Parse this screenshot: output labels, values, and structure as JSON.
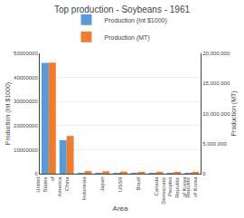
{
  "chart_data": {
    "type": "bar",
    "title": "Top production - Soybeans - 1961",
    "xlabel": "Area",
    "ylabel": "Production (Int $1000)",
    "y2label": "Production (MT)",
    "categories": [
      "United\nStates\nof\nAmerica",
      "China",
      "Indonesia",
      "Japan",
      "USSR",
      "Brazil",
      "Canada",
      "Democratic\nPeoples\nRepublic\nof Korea",
      "Republic\nof Korea"
    ],
    "series": [
      {
        "name": "Production (Int $1000)",
        "color": "#5b9bd5",
        "values": [
          46071275,
          13926583,
          110348,
          334204,
          60137,
          58494,
          47396,
          39827,
          39902
        ]
      },
      {
        "name": "Production (MT)",
        "color": "#ed7d31",
        "axis": "y2",
        "values": [
          18468000,
          6283900,
          426300,
          392900,
          344000,
          271488,
          190443,
          170000,
          164836
        ]
      }
    ],
    "ylim": [
      0,
      50000000
    ],
    "yticks": [
      0,
      10000000,
      20000000,
      30000000,
      40000000,
      50000000
    ],
    "y2lim": [
      0,
      20000000
    ],
    "y2ticks": [
      0,
      {
        "value": 5000000,
        "label": "5,000,000"
      },
      {
        "value": 10000000,
        "label": "10,000,000"
      },
      {
        "value": 15000000,
        "label": "15,000,000"
      },
      {
        "value": 20000000,
        "label": "20,000,000"
      }
    ],
    "grid": true,
    "legend": "top"
  }
}
